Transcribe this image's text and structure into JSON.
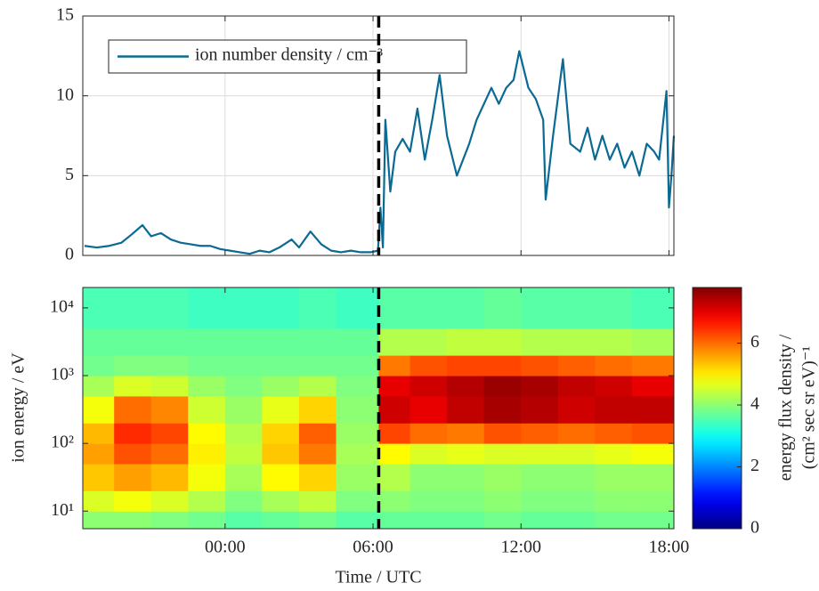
{
  "chart_data": [
    {
      "type": "line",
      "xlim": [
        -5.77,
        18.2
      ],
      "xticks": [
        0,
        6,
        12,
        18
      ],
      "ylim": [
        0,
        15
      ],
      "yticks": [
        0,
        5,
        10,
        15
      ],
      "grid": true,
      "legend": "upper left",
      "vlines": [
        6.23
      ],
      "x": [
        -5.7,
        -5.2,
        -4.7,
        -4.2,
        -3.8,
        -3.35,
        -3.0,
        -2.6,
        -2.2,
        -1.8,
        -1.4,
        -1.0,
        -0.6,
        -0.2,
        0.2,
        0.6,
        1.0,
        1.4,
        1.8,
        2.2,
        2.7,
        3.0,
        3.46,
        3.9,
        4.3,
        4.7,
        5.1,
        5.5,
        5.9,
        6.2,
        6.3,
        6.4,
        6.5,
        6.7,
        6.9,
        7.2,
        7.5,
        7.8,
        8.1,
        8.4,
        8.7,
        9.0,
        9.4,
        9.9,
        10.2,
        10.5,
        10.8,
        11.1,
        11.4,
        11.7,
        11.93,
        12.3,
        12.6,
        12.9,
        13.0,
        13.3,
        13.7,
        14.0,
        14.4,
        14.7,
        15.0,
        15.3,
        15.6,
        15.9,
        16.2,
        16.5,
        16.8,
        17.1,
        17.4,
        17.6,
        17.9,
        18.0,
        18.1,
        18.2
      ],
      "series": [
        {
          "name": "ion number density / cm⁻³",
          "color": "#0b6a94",
          "values": [
            0.6,
            0.5,
            0.6,
            0.8,
            1.3,
            1.9,
            1.2,
            1.4,
            1.0,
            0.8,
            0.7,
            0.6,
            0.6,
            0.4,
            0.3,
            0.2,
            0.1,
            0.3,
            0.2,
            0.5,
            1.0,
            0.5,
            1.5,
            0.7,
            0.3,
            0.2,
            0.3,
            0.2,
            0.2,
            0.3,
            3.0,
            0.5,
            8.5,
            4.0,
            6.5,
            7.3,
            6.5,
            9.2,
            6.0,
            8.5,
            11.3,
            7.5,
            5.0,
            7.0,
            8.5,
            9.5,
            10.5,
            9.5,
            10.5,
            11.0,
            12.8,
            10.5,
            9.8,
            8.5,
            3.5,
            7.5,
            12.3,
            7.0,
            6.5,
            8.0,
            6.0,
            7.5,
            6.0,
            7.0,
            5.5,
            6.5,
            5.0,
            7.0,
            6.5,
            6.0,
            10.3,
            3.0,
            5.0,
            7.5
          ]
        }
      ]
    },
    {
      "type": "heatmap",
      "x_label": "Time / UTC",
      "y_label": "ion energy / eV",
      "log_y": true,
      "colormap": "jet",
      "xlim": [
        -5.77,
        18.2
      ],
      "xticks": [
        {
          "value": 0,
          "label": "00:00"
        },
        {
          "value": 6,
          "label": "06:00"
        },
        {
          "value": 12,
          "label": "12:00"
        },
        {
          "value": 18,
          "label": "18:00"
        }
      ],
      "ylim": [
        5.5,
        20000
      ],
      "yticks": [
        {
          "value": 10,
          "label": "10¹"
        },
        {
          "value": 100,
          "label": "10²"
        },
        {
          "value": 1000,
          "label": "10³"
        },
        {
          "value": 10000,
          "label": "10⁴"
        }
      ],
      "vlines": [
        6.23
      ],
      "x_edges": [
        -5.77,
        -4.5,
        -3,
        -1.5,
        0,
        1.5,
        3,
        4.5,
        6.23,
        7.5,
        9,
        10.5,
        12,
        13.5,
        15,
        16.5,
        18.2
      ],
      "y_edges": [
        5.5,
        10,
        20,
        50,
        100,
        200,
        500,
        1000,
        2000,
        5000,
        20000
      ],
      "z": [
        [
          4.0,
          4.0,
          3.9,
          3.8,
          3.6,
          3.7,
          3.8,
          3.6,
          3.7,
          3.7,
          3.7,
          3.8,
          3.7,
          3.7,
          3.8,
          3.8
        ],
        [
          4.6,
          4.8,
          4.6,
          4.3,
          3.9,
          4.2,
          4.4,
          3.9,
          4.0,
          3.9,
          3.9,
          4.0,
          3.9,
          3.9,
          4.0,
          4.0
        ],
        [
          5.3,
          5.6,
          5.4,
          4.8,
          4.2,
          4.9,
          5.2,
          4.1,
          4.3,
          4.0,
          4.0,
          4.1,
          4.0,
          4.0,
          4.1,
          4.1
        ],
        [
          5.6,
          6.2,
          6.0,
          5.0,
          4.4,
          5.3,
          5.9,
          4.2,
          4.9,
          4.6,
          4.7,
          4.6,
          4.6,
          4.6,
          4.7,
          4.8
        ],
        [
          5.4,
          6.5,
          6.3,
          4.9,
          4.3,
          5.2,
          6.1,
          4.1,
          6.3,
          6.0,
          5.9,
          6.2,
          6.1,
          6.0,
          6.1,
          6.2
        ],
        [
          4.8,
          6.0,
          5.8,
          4.5,
          4.1,
          4.7,
          5.2,
          4.0,
          7.2,
          7.0,
          7.3,
          7.5,
          7.4,
          7.2,
          7.3,
          7.3
        ],
        [
          4.2,
          4.6,
          4.5,
          4.1,
          3.9,
          4.1,
          4.3,
          3.9,
          7.0,
          7.2,
          7.4,
          7.6,
          7.5,
          7.3,
          7.2,
          7.0
        ],
        [
          3.8,
          3.9,
          3.9,
          3.8,
          3.8,
          3.8,
          3.8,
          3.8,
          5.9,
          6.2,
          6.3,
          6.3,
          6.2,
          6.1,
          6.0,
          5.9
        ],
        [
          3.7,
          3.7,
          3.7,
          3.7,
          3.7,
          3.7,
          3.7,
          3.7,
          4.3,
          4.3,
          4.4,
          4.4,
          4.3,
          4.3,
          4.3,
          4.2
        ],
        [
          3.5,
          3.5,
          3.5,
          3.4,
          3.4,
          3.4,
          3.5,
          3.4,
          3.6,
          3.6,
          3.6,
          3.7,
          3.6,
          3.6,
          3.6,
          3.5
        ]
      ],
      "clim": [
        0,
        7.8
      ],
      "cticks": [
        0,
        2,
        4,
        6
      ],
      "colorbar_label": [
        "energy flux density /",
        "(cm² sec sr eV)⁻¹"
      ]
    }
  ]
}
